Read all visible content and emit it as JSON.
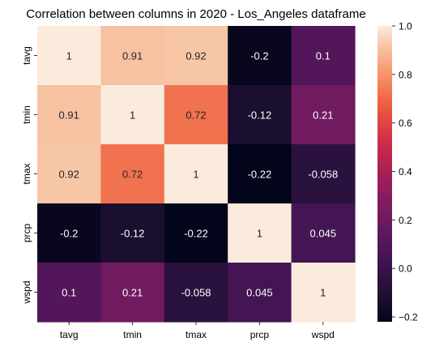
{
  "chart_data": {
    "type": "heatmap",
    "title": "Correlation between columns in 2020 - Los_Angeles dataframe",
    "xlabel": "",
    "ylabel": "",
    "x_categories": [
      "tavg",
      "tmin",
      "tmax",
      "prcp",
      "wspd"
    ],
    "y_categories": [
      "tavg",
      "tmin",
      "tmax",
      "prcp",
      "wspd"
    ],
    "values": [
      [
        1,
        0.91,
        0.92,
        -0.2,
        0.1
      ],
      [
        0.91,
        1,
        0.72,
        -0.12,
        0.21
      ],
      [
        0.92,
        0.72,
        1,
        -0.22,
        -0.058
      ],
      [
        -0.2,
        -0.12,
        -0.22,
        1,
        0.045
      ],
      [
        0.1,
        0.21,
        -0.058,
        0.045,
        1
      ]
    ],
    "annotations": [
      [
        "1",
        "0.91",
        "0.92",
        "-0.2",
        "0.1"
      ],
      [
        "0.91",
        "1",
        "0.72",
        "-0.12",
        "0.21"
      ],
      [
        "0.92",
        "0.72",
        "1",
        "-0.22",
        "-0.058"
      ],
      [
        "-0.2",
        "-0.12",
        "-0.22",
        "1",
        "0.045"
      ],
      [
        "0.1",
        "0.21",
        "-0.058",
        "0.045",
        "1"
      ]
    ],
    "colormap": "rocket",
    "vmin": -0.22,
    "vmax": 1,
    "colorbar": {
      "ticks": [
        -0.2,
        0.0,
        0.2,
        0.4,
        0.6,
        0.8,
        1.0
      ],
      "tick_labels": [
        "−0.2",
        "0.0",
        "0.2",
        "0.4",
        "0.6",
        "0.8",
        "1.0"
      ],
      "placement": "right"
    },
    "grid": false,
    "text_colors": {
      "light": "#ffffff",
      "dark": "#262626"
    }
  }
}
